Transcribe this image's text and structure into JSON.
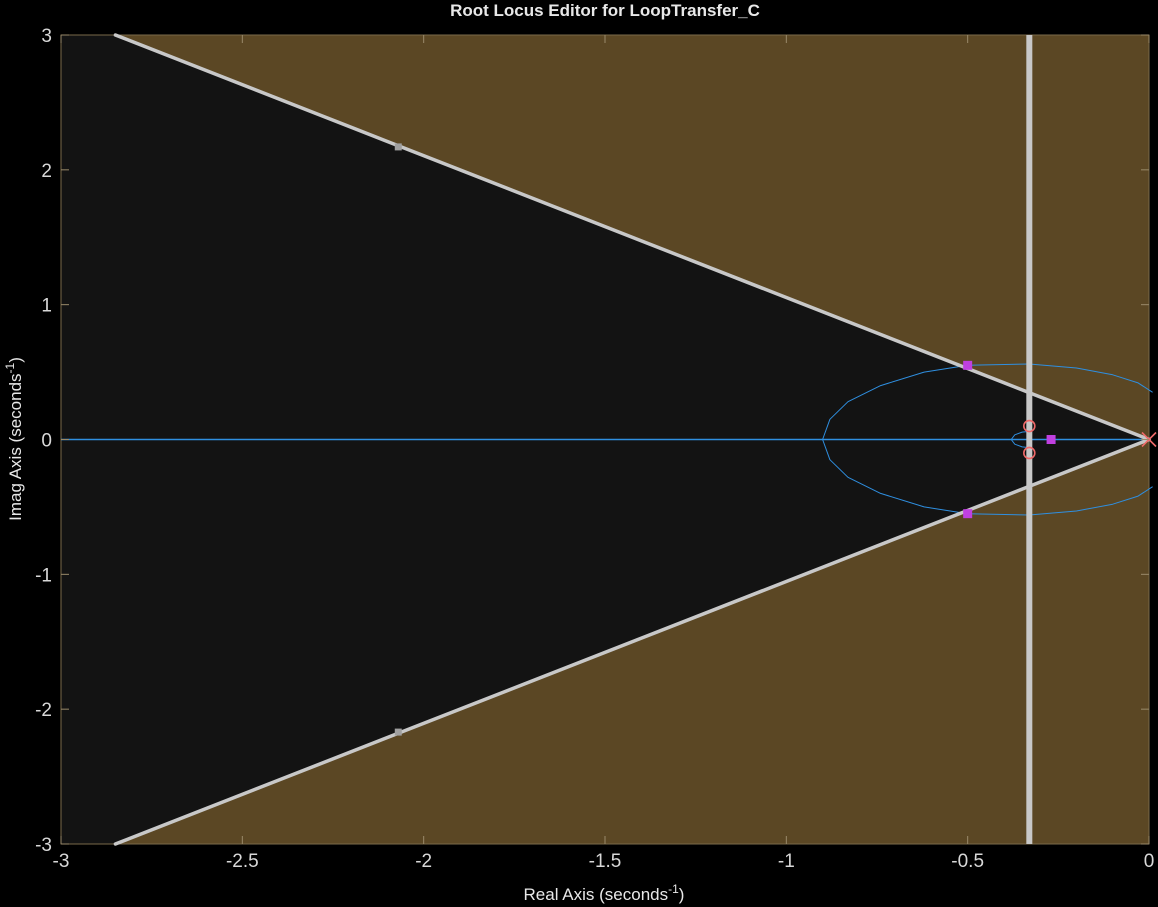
{
  "chart_data": {
    "type": "line",
    "title": "Root Locus Editor for LoopTransfer_C",
    "xlabel": "Real Axis (seconds",
    "ylabel": "Imag Axis (seconds",
    "axis_unit_exponent": "-1",
    "xlim": [
      -3,
      0
    ],
    "ylim": [
      -3,
      3
    ],
    "xticks": [
      -3,
      -2.5,
      -2,
      -1.5,
      -1,
      -0.5,
      0
    ],
    "yticks": [
      -3,
      -2,
      -1,
      0,
      1,
      2,
      3
    ],
    "xtick_labels": [
      "-3",
      "-2.5",
      "-2",
      "-1.5",
      "-1",
      "-0.5",
      "0"
    ],
    "ytick_labels": [
      "-3",
      "-2",
      "-1",
      "0",
      "1",
      "2",
      "3"
    ],
    "grid": false,
    "colors": {
      "background": "#000000",
      "constraint_region": "#5b4724",
      "acceptable_region": "#131313",
      "constraint_line": "#c8c8c8",
      "locus": "#2f8fe0",
      "zero": "#f06a6a",
      "pole": "#f06a6a",
      "closed_loop_pole": "#c040e0",
      "tick_text": "#d8d8d8"
    },
    "damping_constraint": {
      "vertex": [
        0,
        0
      ],
      "upper_end": [
        -2.85,
        3
      ],
      "lower_end": [
        -2.85,
        -3
      ],
      "handles": [
        [
          -2.07,
          2.17
        ],
        [
          -2.07,
          -2.17
        ]
      ]
    },
    "settling_constraint": {
      "x": -0.33
    },
    "locus_branches": [
      {
        "name": "real-axis",
        "points": [
          [
            -3,
            0
          ],
          [
            0,
            0
          ]
        ]
      },
      {
        "name": "outer-loop",
        "points": [
          [
            0.01,
            0.35
          ],
          [
            -0.03,
            0.42
          ],
          [
            -0.1,
            0.48
          ],
          [
            -0.2,
            0.53
          ],
          [
            -0.33,
            0.56
          ],
          [
            -0.5,
            0.55
          ],
          [
            -0.62,
            0.5
          ],
          [
            -0.74,
            0.4
          ],
          [
            -0.83,
            0.28
          ],
          [
            -0.88,
            0.15
          ],
          [
            -0.9,
            0
          ],
          [
            -0.88,
            -0.15
          ],
          [
            -0.83,
            -0.28
          ],
          [
            -0.74,
            -0.4
          ],
          [
            -0.62,
            -0.5
          ],
          [
            -0.5,
            -0.55
          ],
          [
            -0.33,
            -0.56
          ],
          [
            -0.2,
            -0.53
          ],
          [
            -0.1,
            -0.48
          ],
          [
            -0.03,
            -0.42
          ],
          [
            0.01,
            -0.35
          ]
        ]
      },
      {
        "name": "inner-loop",
        "points": [
          [
            -0.33,
            0.06
          ],
          [
            -0.35,
            0.055
          ],
          [
            -0.37,
            0.035
          ],
          [
            -0.38,
            0
          ],
          [
            -0.37,
            -0.035
          ],
          [
            -0.35,
            -0.055
          ],
          [
            -0.33,
            -0.06
          ]
        ]
      }
    ],
    "zeros": [
      [
        -0.33,
        0.1
      ],
      [
        -0.33,
        -0.1
      ]
    ],
    "poles": [
      [
        0,
        0
      ]
    ],
    "closed_loop_poles": [
      [
        -0.5,
        0.55
      ],
      [
        -0.5,
        -0.55
      ],
      [
        -0.27,
        0
      ]
    ]
  }
}
